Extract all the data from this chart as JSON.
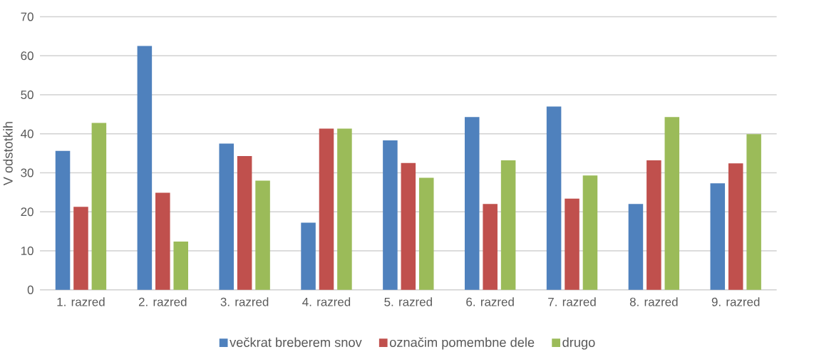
{
  "chart_data": {
    "type": "bar",
    "ylabel": "V odstotkih",
    "categories": [
      "1. razred",
      "2. razred",
      "3. razred",
      "4. razred",
      "5. razred",
      "6. razred",
      "7. razred",
      "8. razred",
      "9. razred"
    ],
    "series": [
      {
        "name": "večkrat breberem snov",
        "color": "#4f81bd",
        "values": [
          35.6,
          62.5,
          37.5,
          17.2,
          38.3,
          44.3,
          47.0,
          22.0,
          27.3
        ]
      },
      {
        "name": "označim pomembne dele",
        "color": "#c0504d",
        "values": [
          21.3,
          24.9,
          34.3,
          41.3,
          32.5,
          22.0,
          23.4,
          33.2,
          32.4
        ]
      },
      {
        "name": "drugo",
        "color": "#9bbb59",
        "values": [
          42.8,
          12.4,
          28.0,
          41.3,
          28.7,
          33.2,
          29.3,
          44.3,
          39.9
        ]
      }
    ],
    "ylim": [
      0,
      70
    ],
    "yticks": [
      0,
      10,
      20,
      30,
      40,
      50,
      60,
      70
    ],
    "grid": "y",
    "legend": "bottom"
  }
}
